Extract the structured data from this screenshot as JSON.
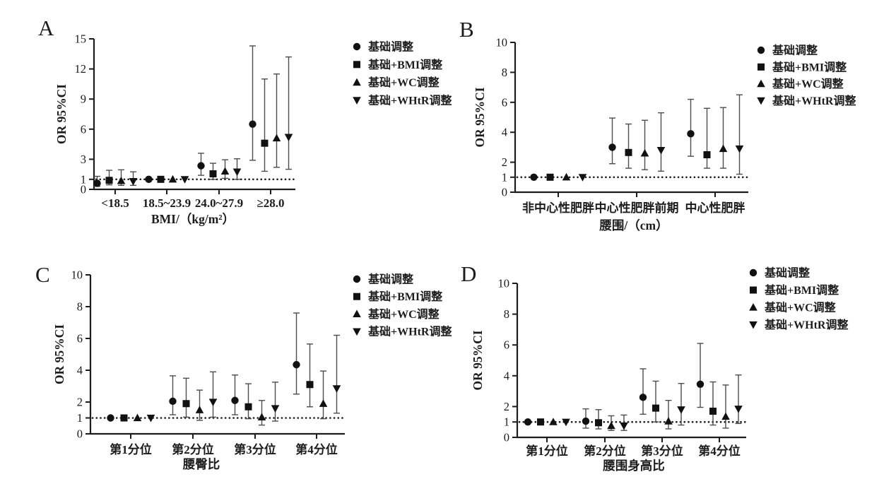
{
  "figure": {
    "background": "#ffffff",
    "marker_color": "#111111",
    "errorbar_color": "#4d4d4d",
    "axis_color": "#1c1c1c",
    "reference_line_color": "#1c1c1c",
    "value_format": [
      "OR",
      "CI_low",
      "CI_high"
    ]
  },
  "chart_data": [
    {
      "type": "scatter",
      "panel_label": "A",
      "ylabel": "OR 95%CI",
      "xlabel": "BMI/（kg/m²）",
      "ylim": [
        0,
        15
      ],
      "yticks": [
        0,
        1,
        3,
        6,
        9,
        12,
        15
      ],
      "reference_line_y": 1,
      "grid": false,
      "legend_position": "right-top",
      "categories": [
        "<18.5",
        "18.5~23.9",
        "24.0~27.9",
        "≥28.0"
      ],
      "series": [
        {
          "name": "基础调整",
          "marker": "circle",
          "values": [
            [
              0.6,
              0.3,
              1.3
            ],
            [
              1,
              1,
              1
            ],
            [
              2.35,
              1.4,
              3.6
            ],
            [
              6.5,
              2.9,
              14.3
            ]
          ]
        },
        {
          "name": "基础+BMI调整",
          "marker": "square",
          "values": [
            [
              0.9,
              0.45,
              1.9
            ],
            [
              1,
              1,
              1
            ],
            [
              1.55,
              1.0,
              2.6
            ],
            [
              4.6,
              1.8,
              11.0
            ]
          ]
        },
        {
          "name": "基础+WC调整",
          "marker": "triangle-up",
          "values": [
            [
              0.85,
              0.4,
              1.95
            ],
            [
              1,
              1,
              1
            ],
            [
              1.8,
              1.1,
              2.95
            ],
            [
              5.1,
              2.2,
              11.5
            ]
          ]
        },
        {
          "name": "基础+WHtR调整",
          "marker": "triangle-down",
          "values": [
            [
              0.8,
              0.4,
              1.75
            ],
            [
              1,
              1,
              1
            ],
            [
              1.75,
              1.0,
              3.05
            ],
            [
              5.2,
              2.0,
              13.2
            ]
          ]
        }
      ]
    },
    {
      "type": "scatter",
      "panel_label": "B",
      "ylabel": "OR 95%CI",
      "xlabel": "腰围/（cm）",
      "ylim": [
        0,
        10
      ],
      "yticks": [
        0,
        1,
        2,
        4,
        6,
        8,
        10
      ],
      "reference_line_y": 1,
      "grid": false,
      "legend_position": "right-top",
      "categories": [
        "非中心性肥胖",
        "中心性肥胖前期",
        "中心性肥胖"
      ],
      "series": [
        {
          "name": "基础调整",
          "marker": "circle",
          "values": [
            [
              1,
              1,
              1
            ],
            [
              3.0,
              1.9,
              4.95
            ],
            [
              3.9,
              2.4,
              6.2
            ]
          ]
        },
        {
          "name": "基础+BMI调整",
          "marker": "square",
          "values": [
            [
              1,
              1,
              1
            ],
            [
              2.65,
              1.6,
              4.55
            ],
            [
              2.5,
              1.6,
              5.6
            ]
          ]
        },
        {
          "name": "基础+WC调整",
          "marker": "triangle-up",
          "values": [
            [
              1,
              1,
              1
            ],
            [
              2.6,
              1.5,
              4.8
            ],
            [
              2.9,
              1.6,
              5.65
            ]
          ]
        },
        {
          "name": "基础+WHtR调整",
          "marker": "triangle-down",
          "values": [
            [
              1,
              1,
              1
            ],
            [
              2.8,
              1.4,
              5.3
            ],
            [
              2.9,
              1.2,
              6.5
            ]
          ]
        }
      ]
    },
    {
      "type": "scatter",
      "panel_label": "C",
      "ylabel": "OR 95%CI",
      "xlabel": "腰臀比",
      "ylim": [
        0,
        10
      ],
      "yticks": [
        0,
        1,
        2,
        4,
        6,
        8,
        10
      ],
      "reference_line_y": 1,
      "grid": false,
      "legend_position": "right-top",
      "categories": [
        "第1分位",
        "第2分位",
        "第3分位",
        "第4分位"
      ],
      "series": [
        {
          "name": "基础调整",
          "marker": "circle",
          "values": [
            [
              1,
              1,
              1
            ],
            [
              2.05,
              1.2,
              3.65
            ],
            [
              2.1,
              1.2,
              3.7
            ],
            [
              4.35,
              2.5,
              7.6
            ]
          ]
        },
        {
          "name": "基础+BMI调整",
          "marker": "square",
          "values": [
            [
              1,
              1,
              1
            ],
            [
              1.9,
              1.05,
              3.5
            ],
            [
              1.7,
              0.95,
              3.15
            ],
            [
              3.1,
              1.7,
              5.65
            ]
          ]
        },
        {
          "name": "基础+WC调整",
          "marker": "triangle-up",
          "values": [
            [
              1,
              1,
              1
            ],
            [
              1.5,
              0.85,
              2.75
            ],
            [
              1.05,
              0.55,
              2.1
            ],
            [
              1.9,
              0.95,
              3.95
            ]
          ]
        },
        {
          "name": "基础+WHtR调整",
          "marker": "triangle-down",
          "values": [
            [
              1,
              1,
              1
            ],
            [
              2.0,
              1.05,
              3.9
            ],
            [
              1.6,
              0.8,
              3.25
            ],
            [
              2.85,
              1.3,
              6.2
            ]
          ]
        }
      ]
    },
    {
      "type": "scatter",
      "panel_label": "D",
      "ylabel": "OR 95%CI",
      "xlabel": "腰围身高比",
      "ylim": [
        0,
        10
      ],
      "yticks": [
        0,
        1,
        2,
        4,
        6,
        8,
        10
      ],
      "reference_line_y": 1,
      "grid": false,
      "legend_position": "right-top",
      "categories": [
        "第1分位",
        "第2分位",
        "第3分位",
        "第4分位"
      ],
      "series": [
        {
          "name": "基础调整",
          "marker": "circle",
          "values": [
            [
              1,
              1,
              1
            ],
            [
              1.05,
              0.6,
              1.85
            ],
            [
              2.6,
              1.5,
              4.45
            ],
            [
              3.45,
              1.95,
              6.1
            ]
          ]
        },
        {
          "name": "基础+BMI调整",
          "marker": "square",
          "values": [
            [
              1,
              1,
              1
            ],
            [
              0.95,
              0.55,
              1.8
            ],
            [
              1.9,
              1.0,
              3.65
            ],
            [
              1.7,
              0.8,
              3.6
            ]
          ]
        },
        {
          "name": "基础+WC调整",
          "marker": "triangle-up",
          "values": [
            [
              1,
              1,
              1
            ],
            [
              0.75,
              0.45,
              1.4
            ],
            [
              1.05,
              0.55,
              2.4
            ],
            [
              1.35,
              0.6,
              3.4
            ]
          ]
        },
        {
          "name": "基础+WHtR调整",
          "marker": "triangle-down",
          "values": [
            [
              1,
              1,
              1
            ],
            [
              0.75,
              0.45,
              1.45
            ],
            [
              1.8,
              0.8,
              3.5
            ],
            [
              1.85,
              0.9,
              4.05
            ]
          ]
        }
      ]
    }
  ]
}
